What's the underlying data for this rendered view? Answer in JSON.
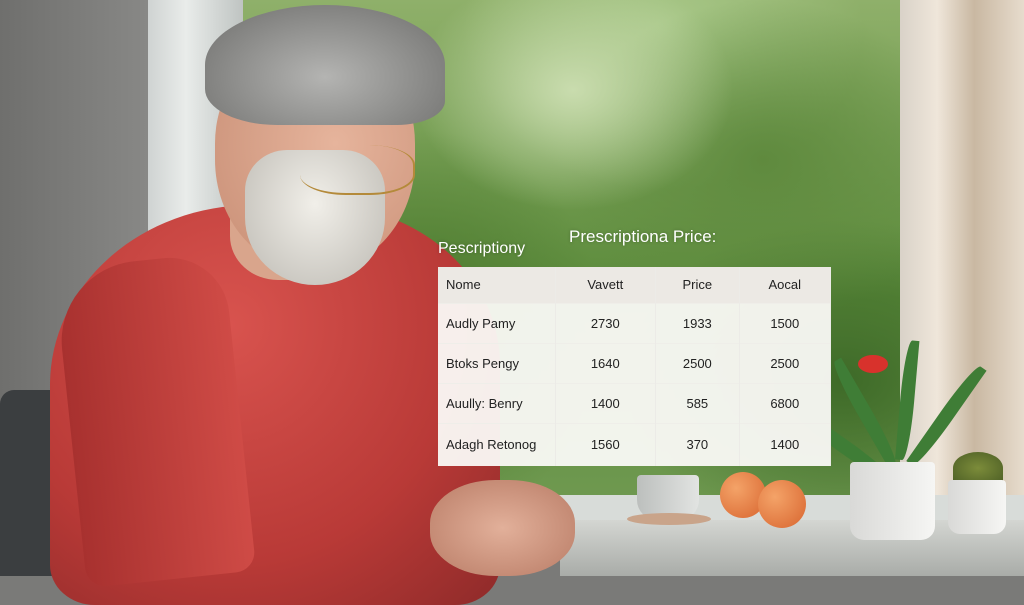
{
  "overlay": {
    "left_title": "Pescriptiony",
    "main_title": "Prescriptiona Price:",
    "table": {
      "headers": [
        "Nome",
        "Vavett",
        "Price",
        "Aocal"
      ],
      "rows": [
        [
          "Audly Pamy",
          "2730",
          "1933",
          "1500"
        ],
        [
          "Btoks Pengy",
          "1640",
          "2500",
          "2500"
        ],
        [
          "Auully: Benry",
          "1400",
          "585",
          "6800"
        ],
        [
          "Adagh Retonog",
          "1560",
          "370",
          "1400"
        ]
      ]
    }
  },
  "colors": {
    "shirt": "#c4413d",
    "foliage": "#5a8a3a",
    "table_bg": "#faf9f6"
  }
}
